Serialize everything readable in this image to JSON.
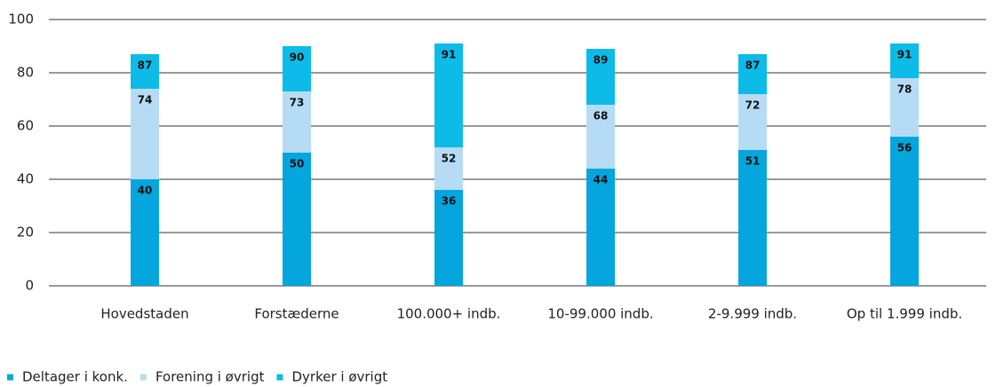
{
  "chart_data": {
    "type": "bar",
    "stacked": false,
    "categories": [
      "Hovedstaden",
      "Forstæderne",
      "100.000+ indb.",
      "10-99.000 indb.",
      "2-9.999 indb.",
      "Op til 1.999 indb."
    ],
    "series": [
      {
        "name": "Deltager i konk.",
        "color": "#05a5de",
        "values": [
          40,
          50,
          36,
          44,
          51,
          56
        ]
      },
      {
        "name": "Forening i øvrigt",
        "color": "#b5dcf4",
        "values": [
          74,
          73,
          52,
          68,
          72,
          78
        ]
      },
      {
        "name": "Dyrker i øvrigt",
        "color": "#0dbbe8",
        "values": [
          87,
          90,
          91,
          89,
          87,
          91
        ]
      }
    ],
    "ylim": [
      0,
      100
    ],
    "yticks": [
      0,
      20,
      40,
      60,
      80,
      100
    ],
    "grid": true,
    "legend": "bottom-left"
  }
}
